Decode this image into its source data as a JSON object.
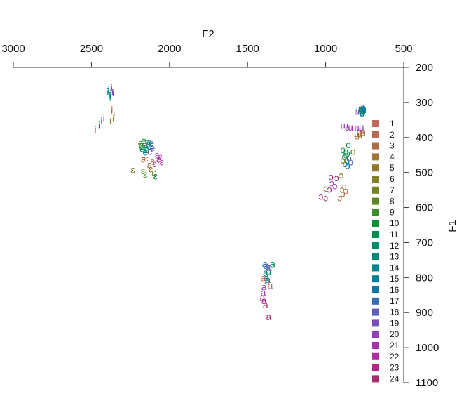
{
  "chart_data": {
    "type": "scatter",
    "xlabel": "F2",
    "ylabel": "F1",
    "x_reversed": true,
    "y_reversed": true,
    "x_axis_position": "top",
    "y_axis_position": "right",
    "xlim": [
      3000,
      500
    ],
    "ylim": [
      200,
      1100
    ],
    "x_ticks": [
      3000,
      2500,
      2000,
      1500,
      1000,
      500
    ],
    "y_ticks": [
      200,
      300,
      400,
      500,
      600,
      700,
      800,
      900,
      1000,
      1100
    ],
    "grid": false,
    "legend_position": "right",
    "legend": {
      "labels": [
        "1",
        "2",
        "3",
        "4",
        "5",
        "6",
        "7",
        "8",
        "9",
        "10",
        "11",
        "12",
        "13",
        "14",
        "15",
        "16",
        "17",
        "18",
        "19",
        "20",
        "21",
        "22",
        "23",
        "24"
      ],
      "colors": [
        "#c0665a",
        "#b86a52",
        "#ae6e45",
        "#a17437",
        "#94792b",
        "#847e24",
        "#728322",
        "#5c8823",
        "#3e8c2a",
        "#0f8f3c",
        "#008f52",
        "#008d66",
        "#008a7a",
        "#00868b",
        "#008099",
        "#0b77a5",
        "#3a6db0",
        "#5e5fb8",
        "#7b4fbb",
        "#9340b8",
        "#a533ae",
        "#b02c9c",
        "#b02a85",
        "#a82c6c"
      ]
    },
    "series": [
      {
        "vowel": "i",
        "points": [
          [
            2390,
            265,
            13
          ],
          [
            2385,
            275,
            14
          ],
          [
            2380,
            285,
            15
          ],
          [
            2395,
            270,
            16
          ],
          [
            2375,
            262,
            17
          ],
          [
            2370,
            258,
            18
          ],
          [
            2365,
            268,
            19
          ],
          [
            2360,
            272,
            20
          ],
          [
            2378,
            280,
            12
          ],
          [
            2368,
            320,
            2
          ],
          [
            2355,
            330,
            3
          ],
          [
            2372,
            325,
            4
          ],
          [
            2360,
            345,
            5
          ],
          [
            2378,
            350,
            6
          ],
          [
            2420,
            345,
            21
          ],
          [
            2435,
            352,
            22
          ],
          [
            2450,
            365,
            23
          ],
          [
            2475,
            378,
            24
          ]
        ]
      },
      {
        "vowel": "e",
        "points": [
          [
            2185,
            415,
            8
          ],
          [
            2180,
            422,
            9
          ],
          [
            2160,
            420,
            10
          ],
          [
            2175,
            432,
            11
          ],
          [
            2150,
            428,
            12
          ],
          [
            2145,
            435,
            13
          ],
          [
            2135,
            418,
            14
          ],
          [
            2128,
            412,
            15
          ],
          [
            2120,
            425,
            16
          ],
          [
            2115,
            415,
            17
          ],
          [
            2110,
            430,
            18
          ],
          [
            2125,
            440,
            19
          ],
          [
            2165,
            408,
            11
          ],
          [
            2155,
            442,
            13
          ],
          [
            2140,
            412,
            9
          ]
        ]
      },
      {
        "vowel": "ɛ",
        "points": [
          [
            2080,
            450,
            20
          ],
          [
            2060,
            455,
            21
          ],
          [
            2050,
            470,
            22
          ],
          [
            2070,
            462,
            23
          ],
          [
            2095,
            475,
            24
          ],
          [
            2110,
            468,
            1
          ],
          [
            2150,
            460,
            2
          ],
          [
            2170,
            462,
            3
          ],
          [
            2130,
            478,
            4
          ],
          [
            2120,
            490,
            5
          ],
          [
            2100,
            500,
            6
          ],
          [
            2235,
            492,
            7
          ],
          [
            2170,
            495,
            8
          ],
          [
            2155,
            505,
            9
          ],
          [
            2090,
            510,
            10
          ]
        ]
      },
      {
        "vowel": "a",
        "points": [
          [
            1390,
            760,
            16
          ],
          [
            1380,
            765,
            17
          ],
          [
            1370,
            768,
            18
          ],
          [
            1360,
            770,
            19
          ],
          [
            1340,
            760,
            11
          ],
          [
            1365,
            782,
            12
          ],
          [
            1385,
            785,
            13
          ],
          [
            1380,
            800,
            14
          ],
          [
            1370,
            805,
            15
          ],
          [
            1400,
            800,
            1
          ],
          [
            1375,
            810,
            2
          ],
          [
            1355,
            822,
            3
          ],
          [
            1395,
            826,
            20
          ],
          [
            1400,
            842,
            21
          ],
          [
            1405,
            856,
            22
          ],
          [
            1395,
            865,
            23
          ],
          [
            1385,
            878,
            24
          ],
          [
            1365,
            912,
            24
          ]
        ]
      },
      {
        "vowel": "u",
        "points": [
          [
            765,
            318,
            9
          ],
          [
            772,
            322,
            10
          ],
          [
            760,
            325,
            11
          ],
          [
            755,
            320,
            12
          ],
          [
            765,
            330,
            13
          ],
          [
            770,
            312,
            14
          ],
          [
            775,
            318,
            15
          ],
          [
            768,
            328,
            16
          ],
          [
            760,
            315,
            17
          ],
          [
            790,
            322,
            18
          ],
          [
            800,
            325,
            19
          ],
          [
            770,
            315,
            14
          ]
        ]
      },
      {
        "vowel": "ɯ",
        "points": [
          [
            880,
            365,
            20
          ],
          [
            850,
            370,
            21
          ],
          [
            810,
            372,
            22
          ],
          [
            780,
            370,
            19
          ]
        ]
      },
      {
        "vowel": "ʉ",
        "points": [
          [
            770,
            380,
            1
          ],
          [
            785,
            388,
            2
          ],
          [
            800,
            395,
            3
          ],
          [
            760,
            385,
            4
          ],
          [
            780,
            392,
            5
          ]
        ]
      },
      {
        "vowel": "o",
        "points": [
          [
            890,
            435,
            10
          ],
          [
            870,
            440,
            11
          ],
          [
            860,
            445,
            12
          ],
          [
            880,
            455,
            13
          ],
          [
            865,
            465,
            14
          ],
          [
            875,
            475,
            15
          ],
          [
            860,
            480,
            16
          ],
          [
            840,
            470,
            17
          ],
          [
            850,
            460,
            18
          ],
          [
            870,
            450,
            9
          ],
          [
            825,
            440,
            8
          ],
          [
            890,
            465,
            7
          ],
          [
            855,
            420,
            10
          ]
        ]
      },
      {
        "vowel": "ɔ",
        "points": [
          [
            960,
            530,
            20
          ],
          [
            940,
            538,
            21
          ],
          [
            975,
            548,
            22
          ],
          [
            965,
            512,
            23
          ],
          [
            930,
            515,
            24
          ],
          [
            880,
            540,
            1
          ],
          [
            870,
            552,
            2
          ],
          [
            890,
            560,
            3
          ],
          [
            910,
            572,
            4
          ],
          [
            895,
            548,
            5
          ],
          [
            1000,
            545,
            6
          ],
          [
            900,
            508,
            7
          ]
        ]
      },
      {
        "vowel": "ɔ",
        "points": [
          [
            1030,
            568,
            23
          ],
          [
            1000,
            572,
            24
          ]
        ]
      }
    ]
  }
}
